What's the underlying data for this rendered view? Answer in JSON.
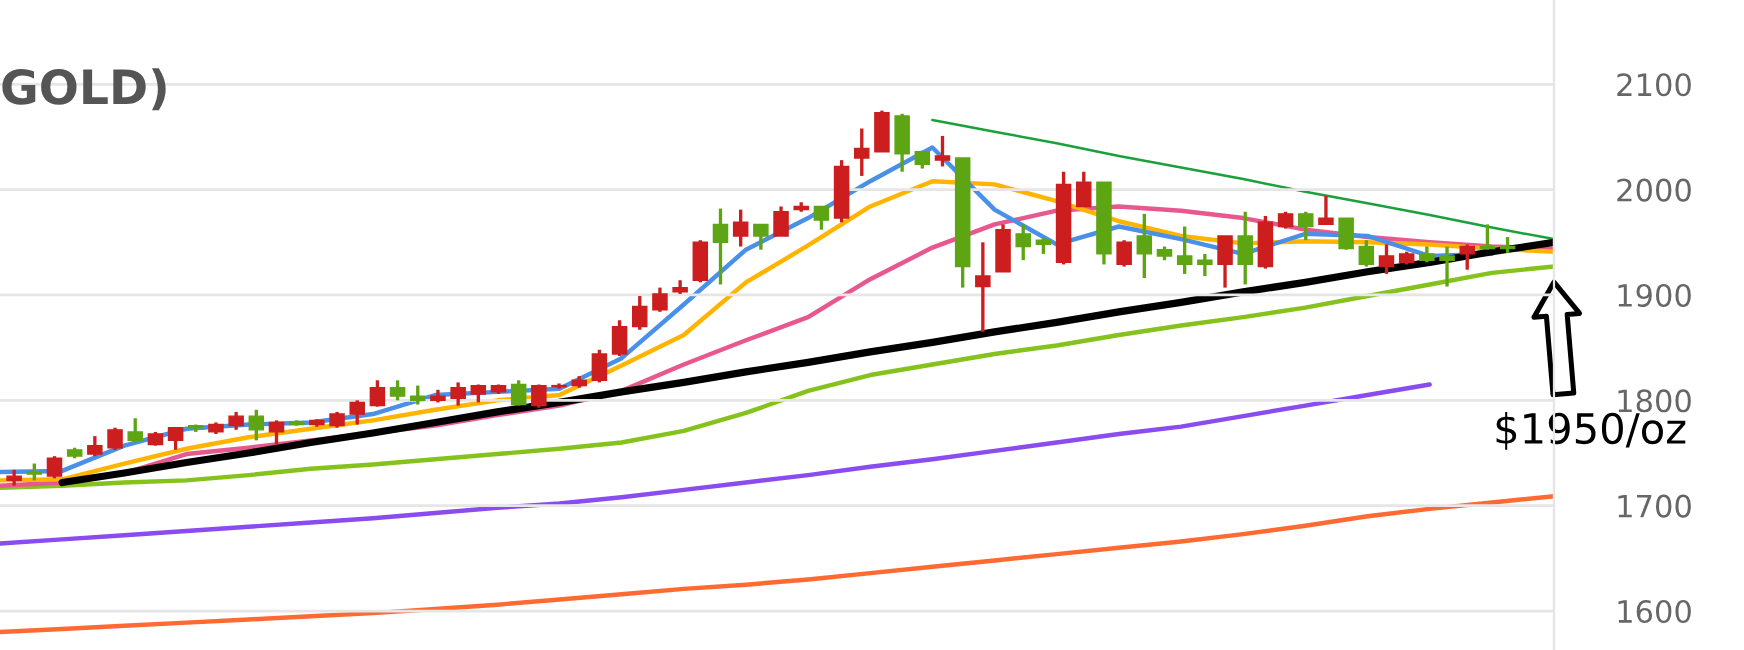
{
  "chart_data": [
    {
      "type": "candlestick",
      "title": "GOLD)",
      "categories": [
        null,
        null,
        null,
        null,
        null,
        null,
        null,
        null,
        null,
        null,
        null,
        null,
        null,
        null,
        null,
        null,
        null,
        null,
        null,
        null,
        null,
        null,
        null,
        null,
        null,
        null,
        null,
        null,
        null,
        null,
        null,
        null,
        null,
        null,
        null,
        null,
        null,
        null,
        null,
        null,
        null,
        null,
        null,
        null,
        null,
        null,
        null,
        null,
        null,
        null,
        null,
        null,
        null,
        null,
        null,
        null,
        null,
        null,
        null,
        null,
        null,
        null,
        null,
        null,
        null,
        null,
        null,
        null,
        null,
        null,
        null,
        null,
        null,
        null,
        null
      ],
      "ohlc": [
        [
          1724,
          1734,
          1719,
          1728
        ],
        [
          1732,
          1740,
          1724,
          1730
        ],
        [
          1728,
          1747,
          1726,
          1745
        ],
        [
          1753,
          1755,
          1745,
          1747
        ],
        [
          1749,
          1766,
          1747,
          1757
        ],
        [
          1755,
          1774,
          1753,
          1772
        ],
        [
          1770,
          1783,
          1760,
          1762
        ],
        [
          1758,
          1770,
          1757,
          1768
        ],
        [
          1762,
          1774,
          1753,
          1774
        ],
        [
          1776,
          1777,
          1770,
          1774
        ],
        [
          1770,
          1779,
          1768,
          1777
        ],
        [
          1776,
          1789,
          1772,
          1785
        ],
        [
          1785,
          1791,
          1762,
          1772
        ],
        [
          1770,
          1781,
          1758,
          1779
        ],
        [
          1779,
          1781,
          1776,
          1777
        ],
        [
          1777,
          1782,
          1775,
          1781
        ],
        [
          1776,
          1789,
          1774,
          1787
        ],
        [
          1787,
          1800,
          1777,
          1798
        ],
        [
          1795,
          1819,
          1794,
          1812
        ],
        [
          1812,
          1819,
          1800,
          1804
        ],
        [
          1804,
          1814,
          1796,
          1800
        ],
        [
          1800,
          1810,
          1798,
          1804
        ],
        [
          1802,
          1817,
          1795,
          1812
        ],
        [
          1806,
          1815,
          1798,
          1814
        ],
        [
          1808,
          1815,
          1806,
          1814
        ],
        [
          1815,
          1819,
          1795,
          1796
        ],
        [
          1795,
          1815,
          1793,
          1814
        ],
        [
          1813,
          1816,
          1811,
          1814
        ],
        [
          1814,
          1823,
          1812,
          1819
        ],
        [
          1819,
          1848,
          1817,
          1844
        ],
        [
          1844,
          1876,
          1842,
          1870
        ],
        [
          1870,
          1899,
          1867,
          1889
        ],
        [
          1886,
          1907,
          1884,
          1901
        ],
        [
          1903,
          1914,
          1901,
          1907
        ],
        [
          1914,
          1952,
          1912,
          1950
        ],
        [
          1967,
          1982,
          1910,
          1950
        ],
        [
          1956,
          1981,
          1946,
          1969
        ],
        [
          1967,
          1967,
          1943,
          1956
        ],
        [
          1956,
          1984,
          1956,
          1979
        ],
        [
          1981,
          1988,
          1979,
          1984
        ],
        [
          1984,
          1984,
          1962,
          1971
        ],
        [
          1973,
          2028,
          1969,
          2022
        ],
        [
          2030,
          2058,
          2013,
          2039
        ],
        [
          2036,
          2075,
          2036,
          2073
        ],
        [
          2070,
          2072,
          2017,
          2034
        ],
        [
          2036,
          2037,
          2020,
          2024
        ],
        [
          2028,
          2051,
          2022,
          2032
        ],
        [
          2030,
          2030,
          1907,
          1927
        ],
        [
          1908,
          1950,
          1865,
          1918
        ],
        [
          1922,
          1967,
          1922,
          1962
        ],
        [
          1958,
          1967,
          1933,
          1946
        ],
        [
          1952,
          1954,
          1939,
          1948
        ],
        [
          1931,
          2017,
          1929,
          2005
        ],
        [
          1984,
          2017,
          1984,
          2007
        ],
        [
          2007,
          2007,
          1929,
          1939
        ],
        [
          1929,
          1952,
          1927,
          1950
        ],
        [
          1956,
          1977,
          1916,
          1939
        ],
        [
          1943,
          1946,
          1933,
          1937
        ],
        [
          1937,
          1965,
          1920,
          1929
        ],
        [
          1933,
          1939,
          1918,
          1929
        ],
        [
          1929,
          1956,
          1907,
          1956
        ],
        [
          1956,
          1979,
          1910,
          1929
        ],
        [
          1927,
          1975,
          1925,
          1969
        ],
        [
          1965,
          1979,
          1963,
          1977
        ],
        [
          1977,
          1979,
          1952,
          1965
        ],
        [
          1967,
          1994,
          1967,
          1973
        ],
        [
          1973,
          1973,
          1943,
          1944
        ],
        [
          1946,
          1952,
          1927,
          1929
        ],
        [
          1927,
          1948,
          1920,
          1937
        ],
        [
          1931,
          1941,
          1929,
          1939
        ],
        [
          1939,
          1946,
          1931,
          1933
        ],
        [
          1937,
          1946,
          1908,
          1933
        ],
        [
          1939,
          1948,
          1924,
          1946
        ],
        [
          1946,
          1967,
          1943,
          1944
        ],
        [
          1946,
          1955,
          1940,
          1944
        ]
      ],
      "colors": [
        "#cc1e1e",
        "#5ea514",
        "#cc1e1e",
        "#5ea514",
        "#cc1e1e",
        "#cc1e1e",
        "#5ea514",
        "#cc1e1e",
        "#cc1e1e",
        "#5ea514",
        "#cc1e1e",
        "#cc1e1e",
        "#5ea514",
        "#cc1e1e",
        "#5ea514",
        "#cc1e1e",
        "#cc1e1e",
        "#cc1e1e",
        "#cc1e1e",
        "#5ea514",
        "#5ea514",
        "#cc1e1e",
        "#cc1e1e",
        "#cc1e1e",
        "#cc1e1e",
        "#5ea514",
        "#cc1e1e",
        "#cc1e1e",
        "#cc1e1e",
        "#cc1e1e",
        "#cc1e1e",
        "#cc1e1e",
        "#cc1e1e",
        "#cc1e1e",
        "#cc1e1e",
        "#5ea514",
        "#cc1e1e",
        "#5ea514",
        "#cc1e1e",
        "#cc1e1e",
        "#5ea514",
        "#cc1e1e",
        "#cc1e1e",
        "#cc1e1e",
        "#5ea514",
        "#5ea514",
        "#cc1e1e",
        "#5ea514",
        "#cc1e1e",
        "#cc1e1e",
        "#5ea514",
        "#5ea514",
        "#cc1e1e",
        "#cc1e1e",
        "#5ea514",
        "#cc1e1e",
        "#5ea514",
        "#5ea514",
        "#5ea514",
        "#5ea514",
        "#cc1e1e",
        "#5ea514",
        "#cc1e1e",
        "#cc1e1e",
        "#5ea514",
        "#cc1e1e",
        "#5ea514",
        "#5ea514",
        "#cc1e1e",
        "#cc1e1e",
        "#5ea514",
        "#5ea514",
        "#cc1e1e",
        "#5ea514",
        "#5ea514"
      ],
      "ylim": [
        1563,
        2180
      ],
      "yticks": [
        1600,
        1700,
        1800,
        1900,
        2000,
        2100
      ],
      "grid": "y"
    },
    {
      "type": "line",
      "categories": [
        null,
        null,
        null,
        null,
        null,
        null,
        null,
        null,
        null,
        null,
        null,
        null,
        null,
        null,
        null,
        null,
        null,
        null,
        null,
        null,
        null,
        null,
        null,
        null,
        null,
        null
      ],
      "series": [
        {
          "color": "#ff6a33",
          "values": [
            1580,
            1583,
            1586,
            1589,
            1592,
            1595,
            1598,
            1602,
            1606,
            1611,
            1616,
            1621,
            1625,
            1630,
            1636,
            1642,
            1648,
            1654,
            1660,
            1666,
            1673,
            1681,
            1690,
            1697,
            1703,
            1709
          ]
        },
        {
          "color": "#8a4cf0",
          "values": [
            1664,
            1668,
            1672,
            1676,
            1680,
            1684,
            1688,
            1693,
            1698,
            1702,
            1708,
            1715,
            1722,
            1729,
            1737,
            1744,
            1752,
            1760,
            1768,
            1775,
            1785,
            1795,
            1805,
            1815,
            null,
            null
          ]
        },
        {
          "color": "#86c21c",
          "values": [
            1717,
            1719,
            1722,
            1724,
            1729,
            1735,
            1739,
            1744,
            1749,
            1754,
            1760,
            1771,
            1788,
            1809,
            1824,
            1834,
            1844,
            1852,
            1862,
            1871,
            1879,
            1888,
            1899,
            1910,
            1921,
            1927
          ]
        },
        {
          "color": "#e8588f",
          "values": [
            1719,
            1722,
            1731,
            1749,
            1755,
            1762,
            1769,
            1776,
            1786,
            1795,
            1809,
            1834,
            1857,
            1879,
            1915,
            1945,
            1967,
            1980,
            1984,
            1980,
            1973,
            1962,
            1955,
            1950,
            1946,
            1944
          ]
        },
        {
          "color": "#ffb400",
          "values": [
            1724,
            1725,
            1740,
            1754,
            1765,
            1773,
            1781,
            1791,
            1800,
            1805,
            1833,
            1862,
            1912,
            1947,
            1984,
            2008,
            2005,
            1989,
            1970,
            1956,
            1949,
            1951,
            1950,
            1948,
            1944,
            1941
          ]
        },
        {
          "color": "#4a90e8",
          "values": [
            1732,
            1733,
            1757,
            1773,
            1777,
            1779,
            1787,
            1805,
            1808,
            1811,
            1840,
            1891,
            1943,
            1973,
            2008,
            2040,
            1981,
            1948,
            1965,
            1953,
            1939,
            1958,
            1956,
            1937,
            1939,
            null
          ]
        },
        {
          "color": "#1aa03c",
          "values": [
            null,
            null,
            null,
            null,
            null,
            null,
            null,
            null,
            null,
            null,
            null,
            null,
            null,
            null,
            null,
            2066,
            2055,
            2044,
            2032,
            2021,
            2010,
            1998,
            1987,
            1976,
            1964,
            1953
          ]
        },
        {
          "color": "#000000",
          "values": [
            null,
            1722,
            1731,
            1741,
            1750,
            1760,
            1769,
            1779,
            1789,
            1798,
            1808,
            1817,
            1827,
            1836,
            1846,
            1855,
            1865,
            1874,
            1884,
            1893,
            1903,
            1912,
            1922,
            1931,
            1941,
            1950
          ]
        }
      ],
      "ylim": [
        1563,
        2180
      ],
      "yticks": [
        1600,
        1700,
        1800,
        1900,
        2000,
        2100
      ],
      "tick_labels": false,
      "annotations": [
        "$1950/oz"
      ]
    }
  ]
}
